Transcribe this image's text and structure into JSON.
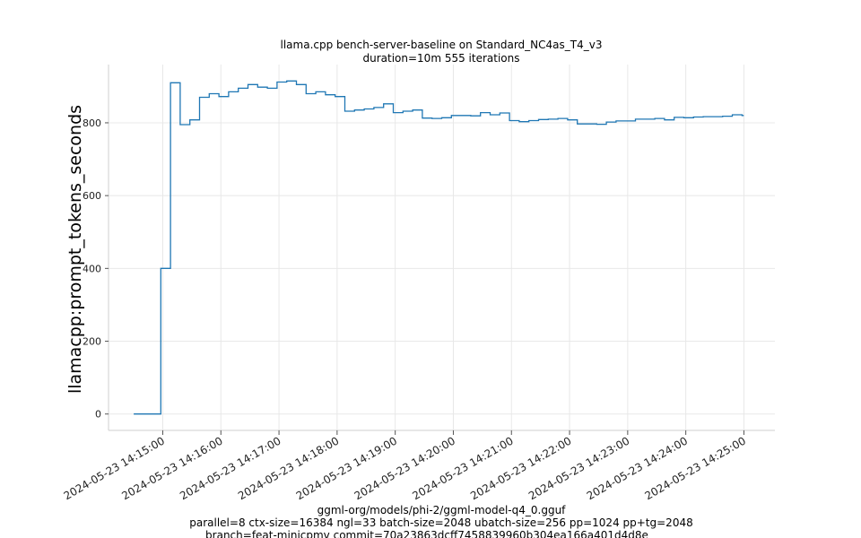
{
  "chart_data": {
    "type": "line",
    "title": "llama.cpp bench-server-baseline on Standard_NC4as_T4_v3",
    "subtitle": "duration=10m 555 iterations",
    "xlabel": "",
    "ylabel": "llamacpp:prompt_tokens_seconds",
    "x_tick_labels": [
      "2024-05-23 14:15:00",
      "2024-05-23 14:16:00",
      "2024-05-23 14:17:00",
      "2024-05-23 14:18:00",
      "2024-05-23 14:19:00",
      "2024-05-23 14:20:00",
      "2024-05-23 14:21:00",
      "2024-05-23 14:22:00",
      "2024-05-23 14:23:00",
      "2024-05-23 14:24:00",
      "2024-05-23 14:25:00"
    ],
    "y_ticks": [
      0,
      200,
      400,
      600,
      800
    ],
    "ylim": [
      -45,
      960
    ],
    "xlim": [
      "2024-05-23 14:14:04",
      "2024-05-23 14:25:32"
    ],
    "grid": true,
    "series": [
      {
        "color": "#1f77b4",
        "step": true,
        "points": [
          [
            "2024-05-23 14:14:30",
            0
          ],
          [
            "2024-05-23 14:14:58",
            400
          ],
          [
            "2024-05-23 14:15:08",
            910
          ],
          [
            "2024-05-23 14:15:18",
            795
          ],
          [
            "2024-05-23 14:15:28",
            808
          ],
          [
            "2024-05-23 14:15:38",
            870
          ],
          [
            "2024-05-23 14:15:48",
            880
          ],
          [
            "2024-05-23 14:15:58",
            872
          ],
          [
            "2024-05-23 14:16:08",
            885
          ],
          [
            "2024-05-23 14:16:18",
            895
          ],
          [
            "2024-05-23 14:16:28",
            905
          ],
          [
            "2024-05-23 14:16:38",
            898
          ],
          [
            "2024-05-23 14:16:48",
            895
          ],
          [
            "2024-05-23 14:16:58",
            912
          ],
          [
            "2024-05-23 14:17:08",
            915
          ],
          [
            "2024-05-23 14:17:18",
            905
          ],
          [
            "2024-05-23 14:17:28",
            880
          ],
          [
            "2024-05-23 14:17:38",
            885
          ],
          [
            "2024-05-23 14:17:48",
            877
          ],
          [
            "2024-05-23 14:17:58",
            872
          ],
          [
            "2024-05-23 14:18:08",
            832
          ],
          [
            "2024-05-23 14:18:18",
            835
          ],
          [
            "2024-05-23 14:18:28",
            838
          ],
          [
            "2024-05-23 14:18:38",
            842
          ],
          [
            "2024-05-23 14:18:48",
            852
          ],
          [
            "2024-05-23 14:18:58",
            828
          ],
          [
            "2024-05-23 14:19:08",
            832
          ],
          [
            "2024-05-23 14:19:18",
            835
          ],
          [
            "2024-05-23 14:19:28",
            813
          ],
          [
            "2024-05-23 14:19:38",
            812
          ],
          [
            "2024-05-23 14:19:48",
            814
          ],
          [
            "2024-05-23 14:19:58",
            820
          ],
          [
            "2024-05-23 14:20:08",
            820
          ],
          [
            "2024-05-23 14:20:18",
            819
          ],
          [
            "2024-05-23 14:20:28",
            828
          ],
          [
            "2024-05-23 14:20:38",
            822
          ],
          [
            "2024-05-23 14:20:48",
            827
          ],
          [
            "2024-05-23 14:20:58",
            806
          ],
          [
            "2024-05-23 14:21:08",
            803
          ],
          [
            "2024-05-23 14:21:18",
            806
          ],
          [
            "2024-05-23 14:21:28",
            809
          ],
          [
            "2024-05-23 14:21:38",
            810
          ],
          [
            "2024-05-23 14:21:48",
            812
          ],
          [
            "2024-05-23 14:21:58",
            808
          ],
          [
            "2024-05-23 14:22:08",
            797
          ],
          [
            "2024-05-23 14:22:18",
            797
          ],
          [
            "2024-05-23 14:22:28",
            796
          ],
          [
            "2024-05-23 14:22:38",
            802
          ],
          [
            "2024-05-23 14:22:48",
            805
          ],
          [
            "2024-05-23 14:22:58",
            805
          ],
          [
            "2024-05-23 14:23:08",
            810
          ],
          [
            "2024-05-23 14:23:18",
            810
          ],
          [
            "2024-05-23 14:23:28",
            812
          ],
          [
            "2024-05-23 14:23:38",
            808
          ],
          [
            "2024-05-23 14:23:48",
            815
          ],
          [
            "2024-05-23 14:23:58",
            814
          ],
          [
            "2024-05-23 14:24:08",
            816
          ],
          [
            "2024-05-23 14:24:18",
            817
          ],
          [
            "2024-05-23 14:24:28",
            817
          ],
          [
            "2024-05-23 14:24:38",
            818
          ],
          [
            "2024-05-23 14:24:48",
            822
          ],
          [
            "2024-05-23 14:24:58",
            820
          ]
        ]
      }
    ]
  },
  "footer": {
    "line1": "ggml-org/models/phi-2/ggml-model-q4_0.gguf",
    "line2": "parallel=8 ctx-size=16384 ngl=33 batch-size=2048 ubatch-size=256 pp=1024 pp+tg=2048",
    "line3": "branch=feat-minicpmv commit=70a23863dcff7458839960b304ea166a401d4d8e"
  }
}
